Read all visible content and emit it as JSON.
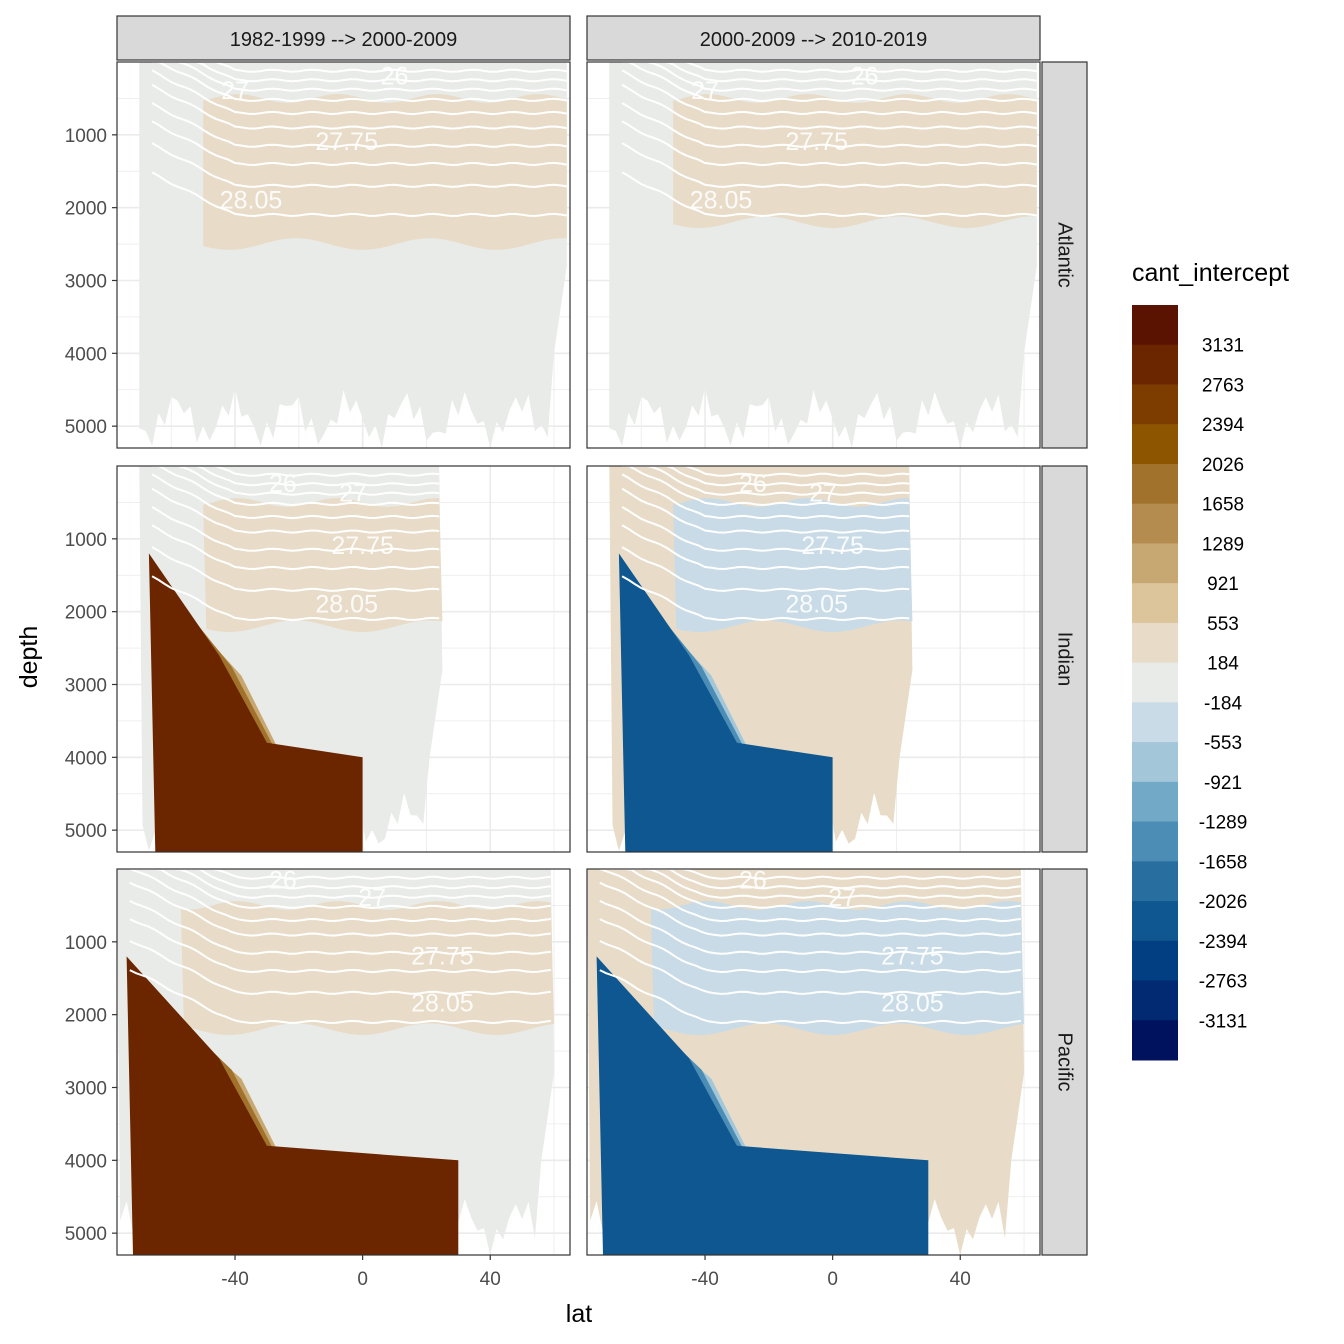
{
  "chart_data": {
    "type": "heatmap",
    "facet_columns": [
      "1982-1999 --> 2000-2009",
      "2000-2009 --> 2010-2019"
    ],
    "facet_rows": [
      "Atlantic",
      "Indian",
      "Pacific"
    ],
    "xlabel": "lat",
    "ylabel": "depth",
    "x_ticks": [
      -40,
      0,
      40
    ],
    "y_ticks": [
      1000,
      2000,
      3000,
      4000,
      5000
    ],
    "xlim": [
      -77,
      65
    ],
    "ylim": [
      5300,
      0
    ],
    "y_reversed": true,
    "isopycnal_labels": [
      "26",
      "27",
      "27.75",
      "28.05"
    ],
    "legend": {
      "title": "cant_intercept",
      "labels": [
        "3131",
        "2763",
        "2394",
        "2026",
        "1658",
        "1289",
        "921",
        "553",
        "184",
        "-184",
        "-553",
        "-921",
        "-1289",
        "-1658",
        "-2026",
        "-2394",
        "-2763",
        "-3131"
      ],
      "colors": [
        "#5a1300",
        "#6b2600",
        "#7d3d00",
        "#8e5500",
        "#a0722c",
        "#b58c50",
        "#c8a872",
        "#dcc49b",
        "#e8dcc8",
        "#e9ebe8",
        "#c8dbe6",
        "#a3c6d9",
        "#72a9c7",
        "#4c8db5",
        "#286fa0",
        "#0e5790",
        "#023f82",
        "#012a72",
        "#00125e"
      ]
    },
    "panels": [
      {
        "ocean": "Atlantic",
        "period": "1982-1999 --> 2000-2009",
        "lat_range": [
          -70,
          64
        ],
        "max_depth": 5300,
        "summary": {
          "surface_0_2500m_high_lat": 553,
          "deep_south": 553,
          "deep_north": 184
        }
      },
      {
        "ocean": "Atlantic",
        "period": "2000-2009 --> 2010-2019",
        "lat_range": [
          -70,
          64
        ],
        "max_depth": 5300,
        "summary": {
          "surface_layers": 553,
          "deep": 0
        }
      },
      {
        "ocean": "Indian",
        "period": "1982-1999 --> 2000-2009",
        "lat_range": [
          -70,
          25
        ],
        "max_depth": 5300,
        "summary": {
          "southern_deep_core": 3131,
          "intermediate": 553,
          "deep_north": 0
        }
      },
      {
        "ocean": "Indian",
        "period": "2000-2009 --> 2010-2019",
        "lat_range": [
          -70,
          25
        ],
        "max_depth": 5300,
        "summary": {
          "southern_deep_core": -2026,
          "intermediate": -184,
          "deep_north": 553
        }
      },
      {
        "ocean": "Pacific",
        "period": "1982-1999 --> 2000-2009",
        "lat_range": [
          -77,
          60
        ],
        "max_depth": 5300,
        "summary": {
          "southern_deep_core": 3131,
          "intermediate": 553,
          "deep_north": 0
        }
      },
      {
        "ocean": "Pacific",
        "period": "2000-2009 --> 2010-2019",
        "lat_range": [
          -77,
          60
        ],
        "max_depth": 5300,
        "summary": {
          "southern_deep_core": -2026,
          "intermediate": -184,
          "deep_north": 553
        }
      }
    ]
  }
}
